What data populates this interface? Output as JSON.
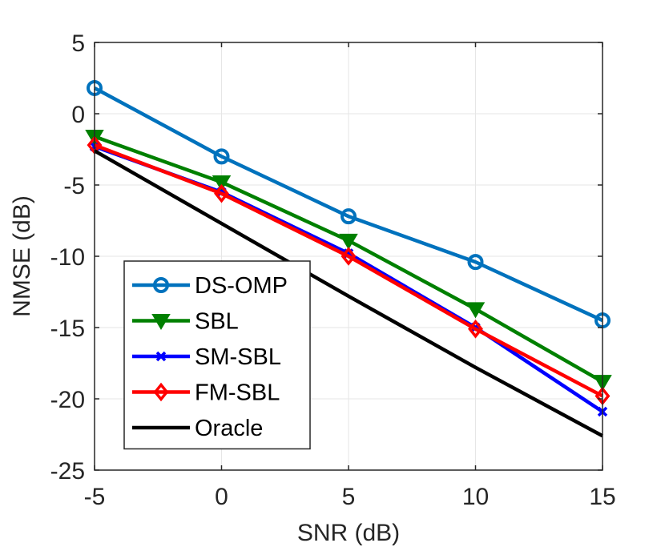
{
  "chart_data": {
    "type": "line",
    "title": "",
    "xlabel": "SNR (dB)",
    "ylabel": "NMSE (dB)",
    "xlim": [
      -5,
      15
    ],
    "ylim": [
      -25,
      5
    ],
    "x": [
      -5,
      0,
      5,
      10,
      15
    ],
    "xticks": [
      "-5",
      "0",
      "5",
      "10",
      "15"
    ],
    "yticks": [
      "5",
      "0",
      "-5",
      "-10",
      "-15",
      "-20",
      "-25"
    ],
    "grid": true,
    "legend_position": "bottom-left",
    "series": [
      {
        "name": "DS-OMP",
        "color": "#0072BD",
        "marker": "circle",
        "values": [
          1.8,
          -3.0,
          -7.2,
          -10.4,
          -14.5
        ]
      },
      {
        "name": "SBL",
        "color": "#008000",
        "marker": "triangle-down",
        "values": [
          -1.6,
          -4.8,
          -8.9,
          -13.7,
          -18.8
        ]
      },
      {
        "name": "SM-SBL",
        "color": "#0000FF",
        "marker": "x",
        "values": [
          -2.3,
          -5.5,
          -9.8,
          -15.0,
          -20.9
        ]
      },
      {
        "name": "FM-SBL",
        "color": "#FF0000",
        "marker": "diamond",
        "values": [
          -2.2,
          -5.6,
          -10.0,
          -15.1,
          -19.8
        ]
      },
      {
        "name": "Oracle",
        "color": "#000000",
        "marker": "none",
        "values": [
          -2.6,
          -7.7,
          -12.8,
          -17.8,
          -22.6
        ]
      }
    ]
  }
}
